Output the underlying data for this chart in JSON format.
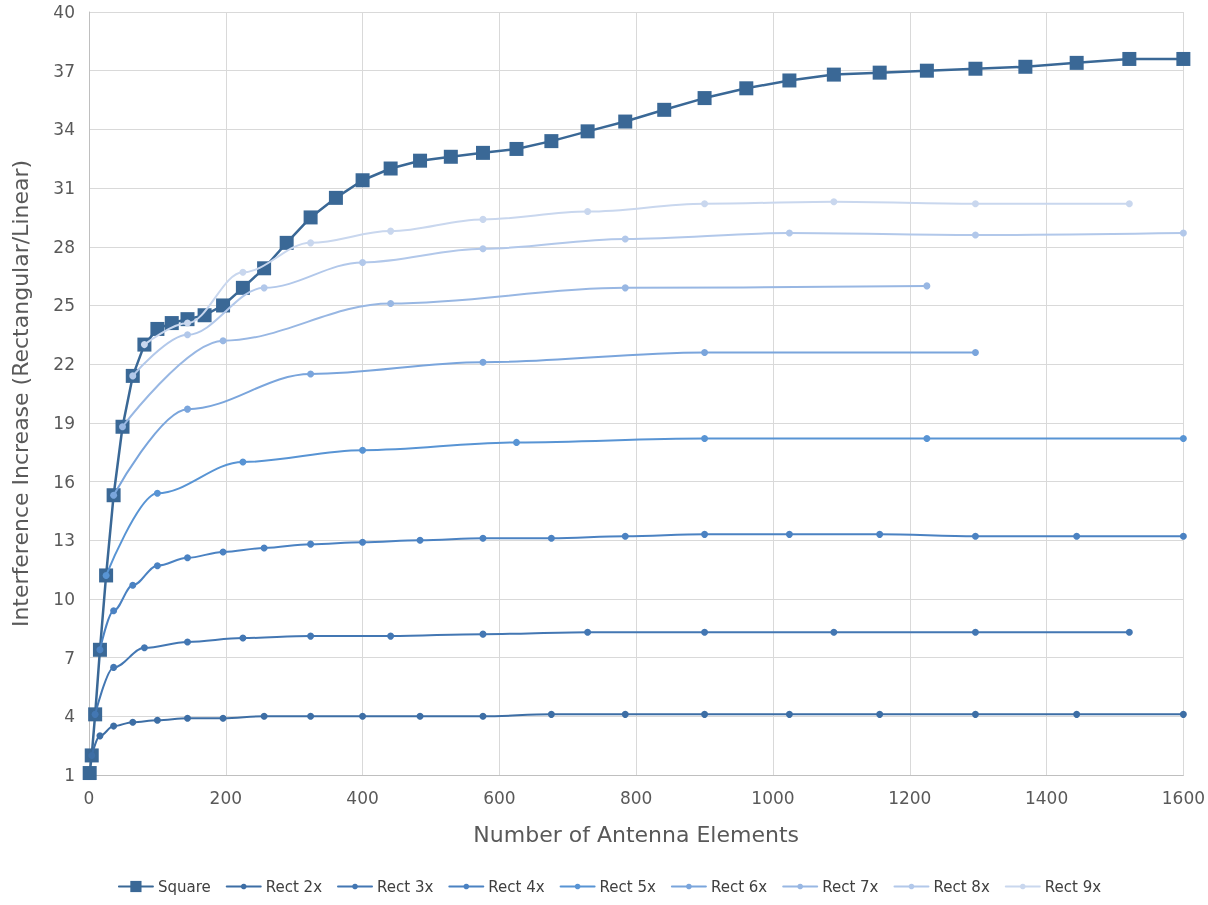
{
  "chart_data": {
    "type": "line",
    "xlabel": "Number of Antenna Elements",
    "ylabel": "Interference Increase (Rectangular/Linear)",
    "xlim": [
      0,
      1600
    ],
    "xticks": [
      0,
      200,
      400,
      600,
      800,
      1000,
      1200,
      1400,
      1600
    ],
    "ylim": [
      1,
      40
    ],
    "yticks": [
      1,
      4,
      7,
      10,
      13,
      16,
      19,
      22,
      25,
      28,
      31,
      34,
      37,
      40
    ],
    "grid": true,
    "legend": "bottom",
    "marker": "circle",
    "line_style": "solid",
    "series": [
      {
        "name": "Square",
        "color": "#3a6896",
        "marker": "square",
        "x": [
          1,
          4,
          9,
          16,
          25,
          36,
          49,
          64,
          81,
          100,
          121,
          144,
          169,
          196,
          225,
          256,
          289,
          324,
          361,
          400,
          441,
          484,
          529,
          576,
          625,
          676,
          729,
          784,
          841,
          900,
          961,
          1024,
          1089,
          1156,
          1225,
          1296,
          1369,
          1444,
          1521,
          1600
        ],
        "values": [
          1.1,
          2.0,
          4.1,
          7.4,
          11.2,
          15.3,
          18.8,
          21.4,
          23.0,
          23.8,
          24.1,
          24.3,
          24.5,
          25.0,
          25.9,
          26.9,
          28.2,
          29.5,
          30.5,
          31.4,
          32.0,
          32.4,
          32.6,
          32.8,
          33.0,
          33.4,
          33.9,
          34.4,
          35.0,
          35.6,
          36.1,
          36.5,
          36.8,
          36.9,
          37.0,
          37.1,
          37.2,
          37.4,
          37.6,
          37.6
        ]
      },
      {
        "name": "Rect 2x",
        "color": "#3d6ea5",
        "x": [
          4,
          16,
          36,
          64,
          100,
          144,
          196,
          256,
          324,
          400,
          484,
          576,
          676,
          784,
          900,
          1024,
          1156,
          1296,
          1444,
          1600
        ],
        "values": [
          2.0,
          3.0,
          3.5,
          3.7,
          3.8,
          3.9,
          3.9,
          4.0,
          4.0,
          4.0,
          4.0,
          4.0,
          4.1,
          4.1,
          4.1,
          4.1,
          4.1,
          4.1,
          4.1,
          4.1
        ]
      },
      {
        "name": "Rect 3x",
        "color": "#4377b3",
        "x": [
          9,
          36,
          81,
          144,
          225,
          324,
          441,
          576,
          729,
          900,
          1089,
          1296,
          1521
        ],
        "values": [
          4.1,
          6.5,
          7.5,
          7.8,
          8.0,
          8.1,
          8.1,
          8.2,
          8.3,
          8.3,
          8.3,
          8.3,
          8.3
        ]
      },
      {
        "name": "Rect 4x",
        "color": "#4b82c2",
        "x": [
          16,
          36,
          64,
          100,
          144,
          196,
          256,
          324,
          400,
          484,
          576,
          676,
          784,
          900,
          1024,
          1156,
          1296,
          1444,
          1600
        ],
        "values": [
          7.4,
          9.4,
          10.7,
          11.7,
          12.1,
          12.4,
          12.6,
          12.8,
          12.9,
          13.0,
          13.1,
          13.1,
          13.2,
          13.3,
          13.3,
          13.3,
          13.2,
          13.2,
          13.2
        ]
      },
      {
        "name": "Rect 5x",
        "color": "#5894d4",
        "x": [
          25,
          100,
          225,
          400,
          625,
          900,
          1225,
          1600
        ],
        "values": [
          11.2,
          15.4,
          17.0,
          17.6,
          18.0,
          18.2,
          18.2,
          18.2
        ]
      },
      {
        "name": "Rect 6x",
        "color": "#7aa5dc",
        "x": [
          36,
          144,
          324,
          576,
          900,
          1296
        ],
        "values": [
          15.3,
          19.7,
          21.5,
          22.1,
          22.6,
          22.6
        ]
      },
      {
        "name": "Rect 7x",
        "color": "#98b7e3",
        "x": [
          49,
          196,
          441,
          784,
          1225
        ],
        "values": [
          18.8,
          23.2,
          25.1,
          25.9,
          26.0
        ]
      },
      {
        "name": "Rect 8x",
        "color": "#b2c8ea",
        "x": [
          64,
          144,
          256,
          400,
          576,
          784,
          1024,
          1296,
          1600
        ],
        "values": [
          21.4,
          23.5,
          25.9,
          27.2,
          27.9,
          28.4,
          28.7,
          28.6,
          28.7
        ]
      },
      {
        "name": "Rect 9x",
        "color": "#c9d7ee",
        "x": [
          81,
          144,
          225,
          324,
          441,
          576,
          729,
          900,
          1089,
          1296,
          1521
        ],
        "values": [
          23.0,
          24.1,
          26.7,
          28.2,
          28.8,
          29.4,
          29.8,
          30.2,
          30.3,
          30.2,
          30.2
        ]
      }
    ]
  }
}
